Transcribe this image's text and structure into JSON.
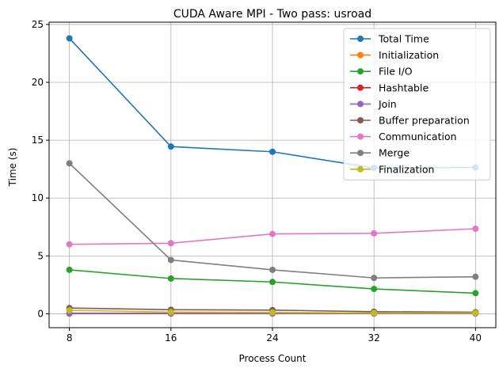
{
  "chart_data": {
    "type": "line",
    "title": "CUDA Aware MPI - Two pass: usroad",
    "xlabel": "Process Count",
    "ylabel": "Time (s)",
    "x": [
      8,
      16,
      24,
      32,
      40
    ],
    "xlim": [
      6.4,
      41.6
    ],
    "ylim": [
      -1.2,
      25.2
    ],
    "xticks": [
      8,
      16,
      24,
      32,
      40
    ],
    "yticks": [
      0,
      5,
      10,
      15,
      20,
      25
    ],
    "grid": true,
    "legend_position": "top-right",
    "series": [
      {
        "name": "Total Time",
        "color": "#1f77b4",
        "values": [
          23.8,
          14.45,
          14.0,
          12.6,
          12.65
        ]
      },
      {
        "name": "Initialization",
        "color": "#ff7f0e",
        "values": [
          0.05,
          0.05,
          0.05,
          0.05,
          0.05
        ]
      },
      {
        "name": "File I/O",
        "color": "#2ca02c",
        "values": [
          3.8,
          3.05,
          2.75,
          2.15,
          1.78
        ]
      },
      {
        "name": "Hashtable",
        "color": "#d62728",
        "values": [
          0.02,
          0.02,
          0.02,
          0.02,
          0.02
        ]
      },
      {
        "name": "Join",
        "color": "#9467bd",
        "values": [
          0.05,
          0.04,
          0.04,
          0.03,
          0.03
        ]
      },
      {
        "name": "Buffer preparation",
        "color": "#8c564b",
        "values": [
          0.5,
          0.35,
          0.32,
          0.18,
          0.14
        ]
      },
      {
        "name": "Communication",
        "color": "#e377c2",
        "values": [
          6.0,
          6.1,
          6.9,
          6.95,
          7.35
        ]
      },
      {
        "name": "Merge",
        "color": "#7f7f7f",
        "values": [
          13.0,
          4.65,
          3.8,
          3.1,
          3.2
        ]
      },
      {
        "name": "Finalization",
        "color": "#bcbd22",
        "values": [
          0.3,
          0.15,
          0.12,
          0.07,
          0.07
        ]
      }
    ]
  }
}
